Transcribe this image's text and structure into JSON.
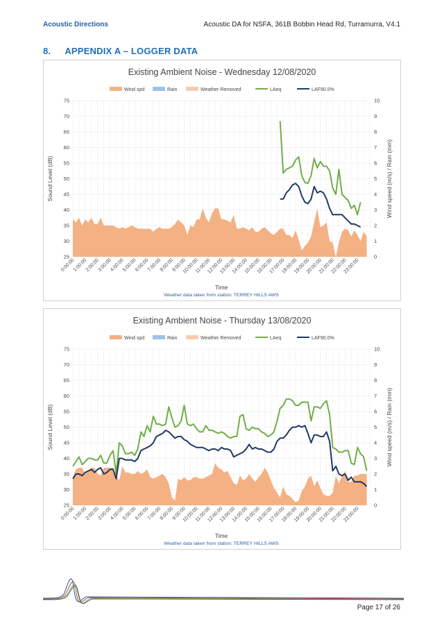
{
  "header": {
    "company": "Acoustic Directions",
    "doc_title": "Acoustic DA for NSFA, 361B Bobbin Head Rd, Turramurra, V4.1"
  },
  "section": {
    "number": "8.",
    "title": "APPENDIX A – LOGGER DATA"
  },
  "footer": {
    "page": "Page 17 of 26"
  },
  "colors": {
    "wind": "#f4b183",
    "rain": "#9dc3e6",
    "weather_removed": "#f8cbad",
    "laeq": "#70ad47",
    "laf90": "#203864",
    "accent": "#1f6fb5"
  },
  "chart_data": [
    {
      "type": "line",
      "title": "Existing Ambient Noise - Wednesday 12/08/2020",
      "xlabel": "Time",
      "ylabel": "Sound Level (dB)",
      "y2label": "Wind speed (m/s) / Rain (mm)",
      "note": "Weather data taken from station: TERREY HILLS AWS",
      "ylim": [
        25,
        75
      ],
      "y_ticks": [
        "25",
        "30",
        "35",
        "40",
        "45",
        "50",
        "55",
        "60",
        "65",
        "70",
        "75"
      ],
      "y2lim": [
        0,
        10
      ],
      "y2_ticks": [
        "0",
        "1",
        "2",
        "3",
        "4",
        "5",
        "6",
        "7",
        "8",
        "9",
        "10"
      ],
      "x_ticks": [
        "0:00:00",
        "1:00:00",
        "2:00:00",
        "3:00:00",
        "4:00:00",
        "5:00:00",
        "6:00:00",
        "7:00:00",
        "8:00:00",
        "9:00:00",
        "10:00:00",
        "11:00:00",
        "12:00:00",
        "13:00:00",
        "14:00:00",
        "15:00:00",
        "16:00:00",
        "17:00:00",
        "18:00:00",
        "19:00:00",
        "20:00:00",
        "21:00:00",
        "22:00:00",
        "23:00:00"
      ],
      "legend": [
        "Wind spd",
        "Rain",
        "Weather Removed",
        "LAeq",
        "LAF90.0%"
      ],
      "legend_position": "top",
      "x_hours": [
        0,
        0.25,
        0.5,
        0.75,
        1,
        1.25,
        1.5,
        1.75,
        2,
        2.25,
        2.5,
        2.75,
        3,
        3.25,
        3.5,
        3.75,
        4,
        4.25,
        4.5,
        4.75,
        5,
        5.25,
        5.5,
        5.75,
        6,
        6.25,
        6.5,
        6.75,
        7,
        7.25,
        7.5,
        7.75,
        8,
        8.25,
        8.5,
        8.75,
        9,
        9.25,
        9.5,
        9.75,
        10,
        10.25,
        10.5,
        10.75,
        11,
        11.25,
        11.5,
        11.75,
        12,
        12.25,
        12.5,
        12.75,
        13,
        13.25,
        13.5,
        13.75,
        14,
        14.25,
        14.5,
        14.75,
        15,
        15.25,
        15.5,
        15.75,
        16,
        16.25,
        16.5,
        16.75,
        17,
        17.25,
        17.5,
        17.75,
        18,
        18.25,
        18.5,
        18.75,
        19,
        19.25,
        19.5,
        19.75,
        20,
        20.25,
        20.5,
        20.75,
        21,
        21.25,
        21.5,
        21.75,
        22,
        22.25,
        22.5,
        22.75,
        23,
        23.25,
        23.5,
        23.75
      ],
      "wind_spd": [
        2.4,
        2.2,
        2.5,
        2.0,
        2.4,
        2.2,
        2.5,
        2.1,
        2.1,
        2.5,
        2.0,
        2.0,
        2.0,
        2.0,
        1.9,
        1.8,
        1.9,
        1.8,
        1.9,
        2.0,
        1.9,
        1.8,
        1.8,
        1.8,
        1.8,
        1.8,
        1.6,
        1.8,
        1.9,
        1.8,
        1.8,
        1.8,
        1.9,
        2.1,
        2.4,
        2.2,
        2.0,
        1.4,
        2.0,
        1.9,
        2.4,
        2.4,
        3.1,
        2.5,
        2.2,
        2.8,
        3.1,
        3.1,
        2.4,
        2.4,
        2.3,
        2.2,
        2.7,
        1.8,
        1.8,
        1.9,
        1.8,
        1.7,
        1.9,
        1.6,
        1.6,
        1.8,
        1.9,
        1.7,
        1.5,
        1.4,
        1.6,
        1.8,
        1.8,
        1.4,
        1.4,
        1.2,
        1.7,
        1.1,
        0.4,
        0.7,
        0.9,
        1.3,
        2.2,
        3.1,
        1.9,
        2.0,
        2.2,
        1.0,
        0.9,
        0.0,
        0.9,
        1.6,
        1.8,
        1.7,
        1.3,
        1.7,
        1.4,
        1.0,
        1.6,
        1.3
      ],
      "laeq": [
        null,
        null,
        null,
        null,
        null,
        null,
        null,
        null,
        null,
        null,
        null,
        null,
        null,
        null,
        null,
        null,
        null,
        null,
        null,
        null,
        null,
        null,
        null,
        null,
        null,
        null,
        null,
        null,
        null,
        null,
        null,
        null,
        null,
        null,
        null,
        null,
        null,
        null,
        null,
        null,
        null,
        null,
        null,
        null,
        null,
        null,
        null,
        null,
        null,
        null,
        null,
        null,
        null,
        null,
        null,
        null,
        null,
        null,
        null,
        null,
        null,
        null,
        null,
        null,
        null,
        null,
        null,
        68.5,
        51.8,
        53.0,
        53.5,
        54.0,
        56.0,
        57.0,
        51.0,
        48.8,
        48.5,
        51.0,
        56.5,
        53.5,
        55.5,
        54.0,
        54.0,
        52.5,
        47.0,
        45.0,
        53.0,
        45.0,
        44.0,
        43.0,
        40.5,
        41.5,
        38.5,
        42.5
      ],
      "laf90": [
        null,
        null,
        null,
        null,
        null,
        null,
        null,
        null,
        null,
        null,
        null,
        null,
        null,
        null,
        null,
        null,
        null,
        null,
        null,
        null,
        null,
        null,
        null,
        null,
        null,
        null,
        null,
        null,
        null,
        null,
        null,
        null,
        null,
        null,
        null,
        null,
        null,
        null,
        null,
        null,
        null,
        null,
        null,
        null,
        null,
        null,
        null,
        null,
        null,
        null,
        null,
        null,
        null,
        null,
        null,
        null,
        null,
        null,
        null,
        null,
        null,
        null,
        null,
        null,
        null,
        null,
        null,
        43.5,
        43.5,
        45.5,
        46.5,
        48.0,
        48.5,
        47.5,
        44.5,
        42.5,
        42.0,
        43.5,
        47.5,
        45.5,
        46.0,
        45.5,
        43.5,
        40.5,
        38.5,
        38.5,
        38.5,
        38.5,
        37.5,
        36.5,
        35.5,
        35.5,
        35.0,
        34.5
      ]
    },
    {
      "type": "line",
      "title": "Existing Ambient Noise - Thursday 13/08/2020",
      "xlabel": "Time",
      "ylabel": "Sound Level (dB)",
      "y2label": "Wind speed (m/s) / Rain (mm)",
      "note": "Weather data taken from station: TERREY HILLS AWS",
      "ylim": [
        25,
        75
      ],
      "y_ticks": [
        "25",
        "30",
        "35",
        "40",
        "45",
        "50",
        "55",
        "60",
        "65",
        "70",
        "75"
      ],
      "y2lim": [
        0,
        10
      ],
      "y2_ticks": [
        "0",
        "1",
        "2",
        "3",
        "4",
        "5",
        "6",
        "7",
        "8",
        "9",
        "10"
      ],
      "x_ticks": [
        "0:00:00",
        "1:00:00",
        "2:00:00",
        "3:00:00",
        "4:00:00",
        "5:00:00",
        "6:00:00",
        "7:00:00",
        "8:00:00",
        "9:00:00",
        "10:00:00",
        "11:00:00",
        "12:00:00",
        "13:00:00",
        "14:00:00",
        "15:00:00",
        "16:00:00",
        "17:00:00",
        "18:00:00",
        "19:00:00",
        "20:00:00",
        "21:00:00",
        "22:00:00",
        "23:00:00"
      ],
      "legend": [
        "Wind spd",
        "Rain",
        "Weather Removed",
        "LAeq",
        "LAF90.0%"
      ],
      "legend_position": "top",
      "x_hours": [
        0,
        0.25,
        0.5,
        0.75,
        1,
        1.25,
        1.5,
        1.75,
        2,
        2.25,
        2.5,
        2.75,
        3,
        3.25,
        3.5,
        3.75,
        4,
        4.25,
        4.5,
        4.75,
        5,
        5.25,
        5.5,
        5.75,
        6,
        6.25,
        6.5,
        6.75,
        7,
        7.25,
        7.5,
        7.75,
        8,
        8.25,
        8.5,
        8.75,
        9,
        9.25,
        9.5,
        9.75,
        10,
        10.25,
        10.5,
        10.75,
        11,
        11.25,
        11.5,
        11.75,
        12,
        12.25,
        12.5,
        12.75,
        13,
        13.25,
        13.5,
        13.75,
        14,
        14.25,
        14.5,
        14.75,
        15,
        15.25,
        15.5,
        15.75,
        16,
        16.25,
        16.5,
        16.75,
        17,
        17.25,
        17.5,
        17.75,
        18,
        18.25,
        18.5,
        18.75,
        19,
        19.25,
        19.5,
        19.75,
        20,
        20.25,
        20.5,
        20.75,
        21,
        21.25,
        21.5,
        21.75,
        22,
        22.25,
        22.5,
        22.75,
        23,
        23.25,
        23.5,
        23.75
      ],
      "wind_spd": [
        1.8,
        2.3,
        2.4,
        2.4,
        2.0,
        2.2,
        2.4,
        2.4,
        2.0,
        1.9,
        2.4,
        2.4,
        2.4,
        2.4,
        1.9,
        1.6,
        2.5,
        2.1,
        2.1,
        2.0,
        2.0,
        2.2,
        2.0,
        2.1,
        2.3,
        1.8,
        1.7,
        1.8,
        1.9,
        2.0,
        1.8,
        1.4,
        0.5,
        0.3,
        1.7,
        1.6,
        1.8,
        1.6,
        1.6,
        1.8,
        1.8,
        1.7,
        1.7,
        1.8,
        1.9,
        2.0,
        2.7,
        2.4,
        2.3,
        2.1,
        2.2,
        1.8,
        1.4,
        1.3,
        1.9,
        1.6,
        1.7,
        2.0,
        1.7,
        1.5,
        1.8,
        2.0,
        2.4,
        2.1,
        1.6,
        1.1,
        0.8,
        0.5,
        1.2,
        0.7,
        0.6,
        0.4,
        0.2,
        0.3,
        0.9,
        1.2,
        1.7,
        1.9,
        1.2,
        1.6,
        1.1,
        0.7,
        0.6,
        0.6,
        0.8,
        1.9,
        1.4,
        1.9,
        2.2,
        1.5,
        1.5,
        1.9,
        1.9,
        2.0,
        2.0,
        2.0
      ],
      "laeq": [
        37.5,
        39.0,
        40.5,
        38.0,
        39.0,
        40.0,
        40.0,
        39.5,
        39.5,
        41.0,
        38.5,
        38.5,
        41.0,
        42.5,
        35.0,
        45.0,
        44.0,
        41.5,
        41.5,
        42.0,
        41.0,
        43.0,
        48.5,
        47.0,
        50.5,
        48.5,
        53.5,
        51.0,
        51.0,
        50.5,
        51.0,
        56.5,
        53.0,
        50.0,
        50.5,
        52.0,
        57.0,
        51.0,
        50.5,
        51.0,
        49.5,
        48.5,
        48.5,
        50.5,
        49.0,
        49.0,
        48.5,
        48.0,
        48.5,
        48.0,
        47.0,
        46.5,
        47.0,
        47.0,
        53.5,
        54.0,
        49.5,
        49.0,
        50.0,
        49.5,
        49.5,
        48.5,
        48.0,
        47.0,
        47.5,
        48.5,
        52.0,
        56.0,
        57.0,
        59.0,
        59.0,
        58.5,
        57.0,
        57.0,
        58.0,
        58.0,
        58.0,
        52.0,
        56.5,
        56.5,
        56.0,
        57.5,
        58.5,
        54.0,
        43.5,
        43.0,
        42.0,
        42.0,
        42.5,
        42.5,
        38.5,
        38.0,
        43.5,
        41.5,
        40.5,
        36.0
      ],
      "laf90": [
        33.5,
        35.0,
        35.0,
        34.5,
        35.5,
        36.0,
        36.5,
        35.5,
        36.5,
        37.0,
        35.0,
        35.5,
        36.5,
        36.5,
        33.5,
        40.0,
        40.0,
        39.5,
        39.5,
        39.5,
        39.0,
        40.0,
        42.5,
        43.0,
        43.5,
        44.0,
        45.0,
        47.0,
        47.5,
        48.0,
        49.0,
        48.5,
        47.5,
        46.5,
        47.0,
        47.0,
        46.0,
        45.5,
        44.5,
        44.0,
        43.5,
        43.5,
        43.5,
        43.0,
        42.5,
        43.0,
        43.0,
        42.5,
        43.5,
        43.0,
        43.0,
        42.5,
        40.5,
        41.0,
        41.5,
        42.0,
        43.0,
        44.5,
        43.0,
        43.5,
        43.0,
        43.0,
        42.5,
        42.0,
        42.0,
        43.0,
        45.5,
        46.5,
        46.5,
        47.5,
        49.0,
        50.0,
        50.0,
        50.5,
        50.0,
        50.5,
        48.0,
        45.0,
        47.5,
        47.5,
        47.0,
        47.0,
        48.5,
        45.5,
        36.0,
        37.5,
        35.0,
        34.5,
        35.0,
        33.0,
        34.0,
        32.5,
        32.5,
        32.5,
        32.0,
        31.0
      ]
    }
  ]
}
